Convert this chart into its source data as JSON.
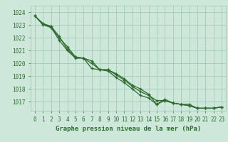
{
  "hours": [
    0,
    1,
    2,
    3,
    4,
    5,
    6,
    7,
    8,
    9,
    10,
    11,
    12,
    13,
    14,
    15,
    16,
    17,
    18,
    19,
    20,
    21,
    22,
    23
  ],
  "line1": [
    1023.7,
    1023.1,
    1022.9,
    1022.1,
    1021.1,
    1020.5,
    1020.4,
    1019.6,
    1019.5,
    1019.5,
    1019.2,
    1018.8,
    1018.3,
    1018.0,
    1017.6,
    1016.8,
    1017.2,
    1016.9,
    1016.8,
    1016.8,
    1016.5,
    1016.5,
    1016.5,
    1016.6
  ],
  "line2": [
    1023.7,
    1023.1,
    1022.8,
    1022.0,
    1021.3,
    1020.5,
    1020.4,
    1020.2,
    1019.5,
    1019.5,
    1019.1,
    1018.7,
    1018.2,
    1017.8,
    1017.5,
    1017.1,
    1017.1,
    1016.9,
    1016.8,
    1016.7,
    1016.5,
    1016.5,
    1016.5,
    1016.6
  ],
  "line3": [
    1023.7,
    1023.0,
    1022.8,
    1021.8,
    1021.0,
    1020.4,
    1020.4,
    1020.0,
    1019.5,
    1019.4,
    1018.9,
    1018.5,
    1018.0,
    1017.5,
    1017.3,
    1016.8,
    1017.1,
    1016.9,
    1016.8,
    1016.7,
    1016.5,
    1016.5,
    1016.5,
    1016.6
  ],
  "line_color": "#2d6a2d",
  "bg_color": "#cde8da",
  "grid_color": "#9ec4af",
  "xlabel": "Graphe pression niveau de la mer (hPa)",
  "ylim_min": 1016.3,
  "ylim_max": 1024.5,
  "yticks": [
    1017,
    1018,
    1019,
    1020,
    1021,
    1022,
    1023,
    1024
  ],
  "tick_fontsize": 5.5,
  "xlabel_fontsize": 6.5
}
